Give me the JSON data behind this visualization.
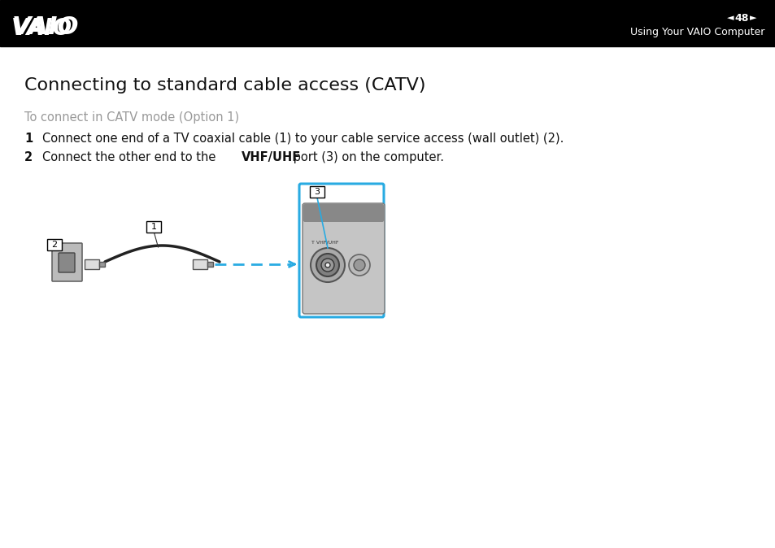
{
  "bg_color": "#ffffff",
  "header_bg": "#000000",
  "page_number": "48",
  "header_right_text": "Using Your VAIO Computer",
  "title": "Connecting to standard cable access (CATV)",
  "subtitle": "To connect in CATV mode (Option 1)",
  "step1_num": "1",
  "step1_text": "Connect one end of a TV coaxial cable (1) to your cable service access (wall outlet) (2).",
  "step2_num": "2",
  "step2_pre": "Connect the other end to the ",
  "step2_bold": "VHF/UHF",
  "step2_post": " port (3) on the computer.",
  "accent_color": "#29abe2",
  "cable_color": "#222222",
  "fig_width": 9.54,
  "fig_height": 6.74,
  "dpi": 100
}
